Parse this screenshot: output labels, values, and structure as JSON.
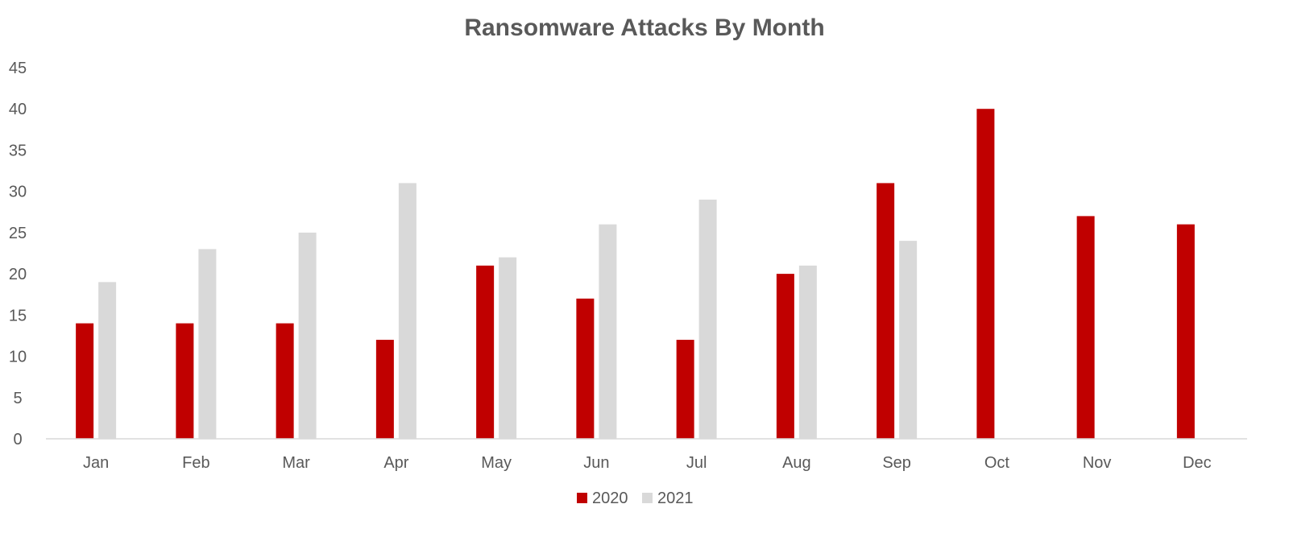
{
  "chart_data": {
    "type": "bar",
    "title": "Ransomware Attacks By Month",
    "xlabel": "",
    "ylabel": "",
    "categories": [
      "Jan",
      "Feb",
      "Mar",
      "Apr",
      "May",
      "Jun",
      "Jul",
      "Aug",
      "Sep",
      "Oct",
      "Nov",
      "Dec"
    ],
    "series": [
      {
        "name": "2020",
        "color": "#c00000",
        "values": [
          14,
          14,
          14,
          12,
          21,
          17,
          12,
          20,
          31,
          40,
          27,
          26
        ]
      },
      {
        "name": "2021",
        "color": "#d9d9d9",
        "values": [
          19,
          23,
          25,
          31,
          22,
          26,
          29,
          21,
          24,
          null,
          null,
          null
        ]
      }
    ],
    "ylim": [
      0,
      45
    ],
    "yticks": [
      0,
      5,
      10,
      15,
      20,
      25,
      30,
      35,
      40,
      45
    ],
    "grid": false,
    "legend_position": "bottom"
  }
}
